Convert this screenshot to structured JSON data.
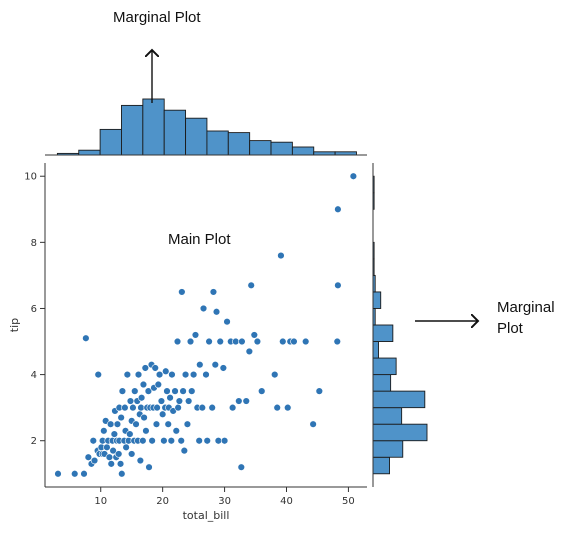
{
  "annotations": {
    "top_marginal": "Marginal Plot",
    "main": "Main Plot",
    "right_marginal_line1": "Marginal",
    "right_marginal_line2": "Plot"
  },
  "colors": {
    "point_fill": "#2f75b5",
    "point_stroke": "#ffffff",
    "bar_fill": "#4f93c9",
    "bar_stroke": "#1a1a1a",
    "axis": "#333333"
  },
  "chart_data": {
    "type": "scatter",
    "xlabel": "total_bill",
    "ylabel": "tip",
    "xlim": [
      1,
      53
    ],
    "ylim": [
      0.6,
      10.4
    ],
    "xticks": [
      10,
      20,
      30,
      40,
      50
    ],
    "yticks": [
      2,
      4,
      6,
      8,
      10
    ],
    "grid": false,
    "points": [
      [
        3.1,
        1.0
      ],
      [
        5.8,
        1.0
      ],
      [
        7.3,
        1.0
      ],
      [
        7.6,
        5.1
      ],
      [
        8.0,
        1.5
      ],
      [
        8.5,
        1.3
      ],
      [
        8.8,
        2.0
      ],
      [
        9.0,
        1.4
      ],
      [
        9.5,
        1.7
      ],
      [
        9.6,
        4.0
      ],
      [
        9.8,
        1.6
      ],
      [
        10.1,
        1.8
      ],
      [
        10.3,
        1.6
      ],
      [
        10.3,
        2.0
      ],
      [
        10.5,
        2.3
      ],
      [
        10.6,
        1.6
      ],
      [
        10.8,
        2.6
      ],
      [
        11.0,
        1.8
      ],
      [
        11.2,
        2.0
      ],
      [
        11.4,
        1.5
      ],
      [
        11.6,
        2.5
      ],
      [
        11.7,
        1.3
      ],
      [
        11.9,
        2.0
      ],
      [
        12.0,
        1.7
      ],
      [
        12.2,
        2.2
      ],
      [
        12.3,
        2.9
      ],
      [
        12.5,
        1.5
      ],
      [
        12.6,
        2.0
      ],
      [
        12.7,
        2.5
      ],
      [
        12.9,
        1.6
      ],
      [
        13.0,
        2.0
      ],
      [
        13.0,
        3.0
      ],
      [
        13.2,
        1.3
      ],
      [
        13.3,
        2.7
      ],
      [
        13.4,
        1.0
      ],
      [
        13.5,
        3.5
      ],
      [
        13.8,
        2.0
      ],
      [
        13.9,
        3.0
      ],
      [
        14.0,
        2.3
      ],
      [
        14.1,
        1.8
      ],
      [
        14.3,
        4.0
      ],
      [
        14.5,
        2.0
      ],
      [
        14.7,
        2.2
      ],
      [
        14.8,
        3.2
      ],
      [
        15.0,
        1.6
      ],
      [
        15.0,
        2.6
      ],
      [
        15.2,
        3.0
      ],
      [
        15.4,
        2.0
      ],
      [
        15.5,
        3.5
      ],
      [
        15.7,
        2.5
      ],
      [
        15.9,
        3.2
      ],
      [
        16.0,
        2.0
      ],
      [
        16.1,
        4.0
      ],
      [
        16.3,
        2.8
      ],
      [
        16.4,
        1.4
      ],
      [
        16.5,
        3.0
      ],
      [
        16.6,
        3.3
      ],
      [
        16.8,
        2.0
      ],
      [
        16.9,
        3.7
      ],
      [
        17.0,
        2.7
      ],
      [
        17.2,
        4.2
      ],
      [
        17.3,
        2.3
      ],
      [
        17.5,
        3.0
      ],
      [
        17.7,
        3.5
      ],
      [
        17.8,
        1.2
      ],
      [
        18.0,
        3.0
      ],
      [
        18.2,
        4.3
      ],
      [
        18.3,
        2.0
      ],
      [
        18.5,
        3.0
      ],
      [
        18.6,
        3.6
      ],
      [
        18.8,
        4.2
      ],
      [
        19.0,
        2.5
      ],
      [
        19.1,
        3.0
      ],
      [
        19.3,
        3.7
      ],
      [
        19.5,
        4.0
      ],
      [
        19.8,
        3.2
      ],
      [
        20.0,
        2.8
      ],
      [
        20.2,
        2.0
      ],
      [
        20.4,
        3.0
      ],
      [
        20.5,
        4.1
      ],
      [
        20.7,
        3.5
      ],
      [
        20.9,
        2.5
      ],
      [
        21.0,
        3.0
      ],
      [
        21.2,
        3.3
      ],
      [
        21.4,
        2.0
      ],
      [
        21.5,
        4.0
      ],
      [
        21.7,
        2.9
      ],
      [
        22.0,
        3.5
      ],
      [
        22.2,
        2.3
      ],
      [
        22.4,
        5.0
      ],
      [
        22.5,
        3.0
      ],
      [
        22.7,
        3.2
      ],
      [
        23.0,
        2.0
      ],
      [
        23.1,
        6.5
      ],
      [
        23.3,
        3.5
      ],
      [
        23.5,
        1.7
      ],
      [
        23.7,
        4.0
      ],
      [
        24.0,
        2.5
      ],
      [
        24.2,
        3.2
      ],
      [
        24.5,
        5.0
      ],
      [
        24.7,
        3.5
      ],
      [
        25.0,
        4.0
      ],
      [
        25.3,
        5.2
      ],
      [
        25.6,
        3.0
      ],
      [
        25.9,
        2.0
      ],
      [
        26.0,
        4.3
      ],
      [
        26.4,
        3.0
      ],
      [
        26.6,
        6.0
      ],
      [
        27.0,
        4.0
      ],
      [
        27.2,
        2.0
      ],
      [
        27.5,
        5.0
      ],
      [
        28.0,
        3.0
      ],
      [
        28.2,
        6.5
      ],
      [
        28.5,
        4.3
      ],
      [
        28.7,
        5.9
      ],
      [
        29.0,
        2.0
      ],
      [
        29.3,
        5.0
      ],
      [
        29.8,
        4.2
      ],
      [
        30.0,
        2.0
      ],
      [
        30.4,
        5.6
      ],
      [
        31.0,
        5.0
      ],
      [
        31.3,
        3.0
      ],
      [
        31.8,
        5.0
      ],
      [
        32.3,
        3.2
      ],
      [
        32.7,
        1.2
      ],
      [
        32.8,
        5.0
      ],
      [
        33.5,
        3.2
      ],
      [
        34.0,
        4.7
      ],
      [
        34.3,
        6.7
      ],
      [
        34.8,
        5.2
      ],
      [
        35.3,
        5.0
      ],
      [
        36.0,
        3.5
      ],
      [
        38.1,
        4.0
      ],
      [
        38.5,
        3.0
      ],
      [
        39.1,
        7.6
      ],
      [
        39.4,
        5.0
      ],
      [
        40.2,
        3.0
      ],
      [
        40.6,
        5.0
      ],
      [
        41.2,
        5.0
      ],
      [
        43.1,
        5.0
      ],
      [
        44.3,
        2.5
      ],
      [
        45.3,
        3.5
      ],
      [
        48.2,
        5.0
      ],
      [
        48.3,
        9.0
      ],
      [
        48.3,
        6.7
      ],
      [
        50.8,
        10.0
      ]
    ],
    "marginal_x": {
      "bin_edges": [
        3,
        6.45,
        9.9,
        13.35,
        16.8,
        20.25,
        23.7,
        27.15,
        30.6,
        34.05,
        37.5,
        40.95,
        44.4,
        47.85,
        51.3
      ],
      "counts": [
        1,
        3,
        16,
        31,
        35,
        28,
        23,
        15,
        14,
        9,
        8,
        5,
        2,
        2
      ]
    },
    "marginal_y": {
      "bin_edges": [
        1.0,
        1.5,
        2.0,
        2.5,
        3.0,
        3.5,
        4.0,
        4.5,
        5.0,
        5.5,
        6.0,
        6.5,
        7.0,
        7.5,
        8.0,
        8.5,
        9.0,
        9.5,
        10.0
      ],
      "counts": [
        15,
        27,
        49,
        26,
        47,
        16,
        21,
        5,
        18,
        2,
        7,
        2,
        1,
        1,
        0,
        0,
        1,
        1
      ]
    }
  }
}
